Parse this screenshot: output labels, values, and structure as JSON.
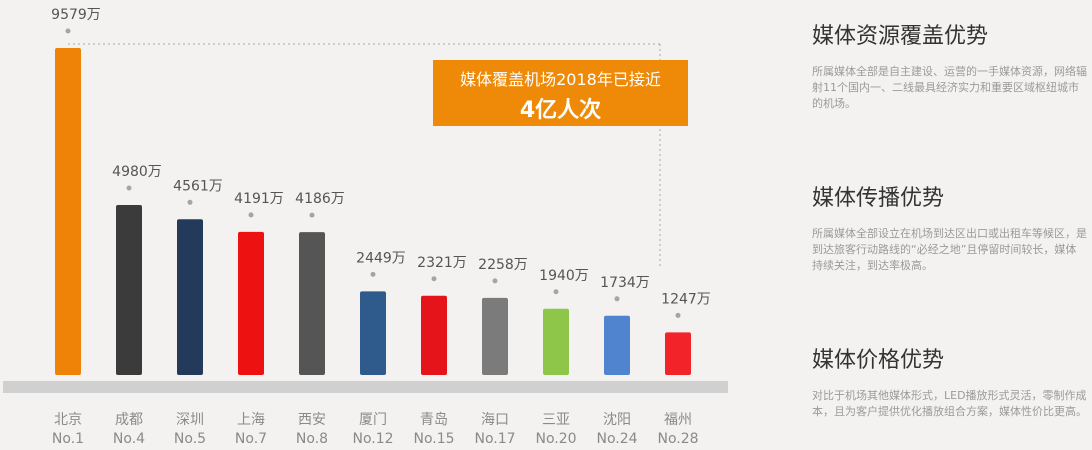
{
  "chart_data": {
    "type": "bar",
    "categories": [
      "北京",
      "成都",
      "深圳",
      "上海",
      "西安",
      "厦门",
      "青岛",
      "海口",
      "三亚",
      "沈阳",
      "福州"
    ],
    "ranks": [
      "No.1",
      "No.4",
      "No.5",
      "No.7",
      "No.8",
      "No.12",
      "No.15",
      "No.17",
      "No.20",
      "No.24",
      "No.28"
    ],
    "values": [
      9579,
      4980,
      4561,
      4191,
      4186,
      2449,
      2321,
      2258,
      1940,
      1734,
      1247
    ],
    "value_labels": [
      "9579万",
      "4980万",
      "4561万",
      "4191万",
      "4186万",
      "2449万",
      "2321万",
      "2258万",
      "1940万",
      "1734万",
      "1247万"
    ],
    "colors": [
      "#ef8307",
      "#3b3b3b",
      "#243a5a",
      "#ee1111",
      "#555555",
      "#2f5a8c",
      "#e5141b",
      "#7b7b7b",
      "#8ec64a",
      "#5084cf",
      "#f2242a"
    ],
    "ylim": [
      0,
      9579
    ],
    "grid": false
  },
  "callout": {
    "line1": "媒体覆盖机场2018年已接近",
    "line2": "4亿人次"
  },
  "advantages": [
    {
      "title": "媒体资源覆盖优势",
      "text": "所属媒体全部是自主建设、运营的一手媒体资源，网络辐射11个国内一、二线最具经济实力和重要区域枢纽城市的机场。"
    },
    {
      "title": "媒体传播优势",
      "text": "所属媒体全部设立在机场到达区出口或出租车等候区，是到达旅客行动路线的“必经之地”且停留时间较长，媒体持续关注，到达率极高。"
    },
    {
      "title": "媒体价格优势",
      "text": "对比于机场其他媒体形式，LED播放形式灵活，零制作成本，且为客户提供优化播放组合方案，媒体性价比更高。"
    }
  ]
}
